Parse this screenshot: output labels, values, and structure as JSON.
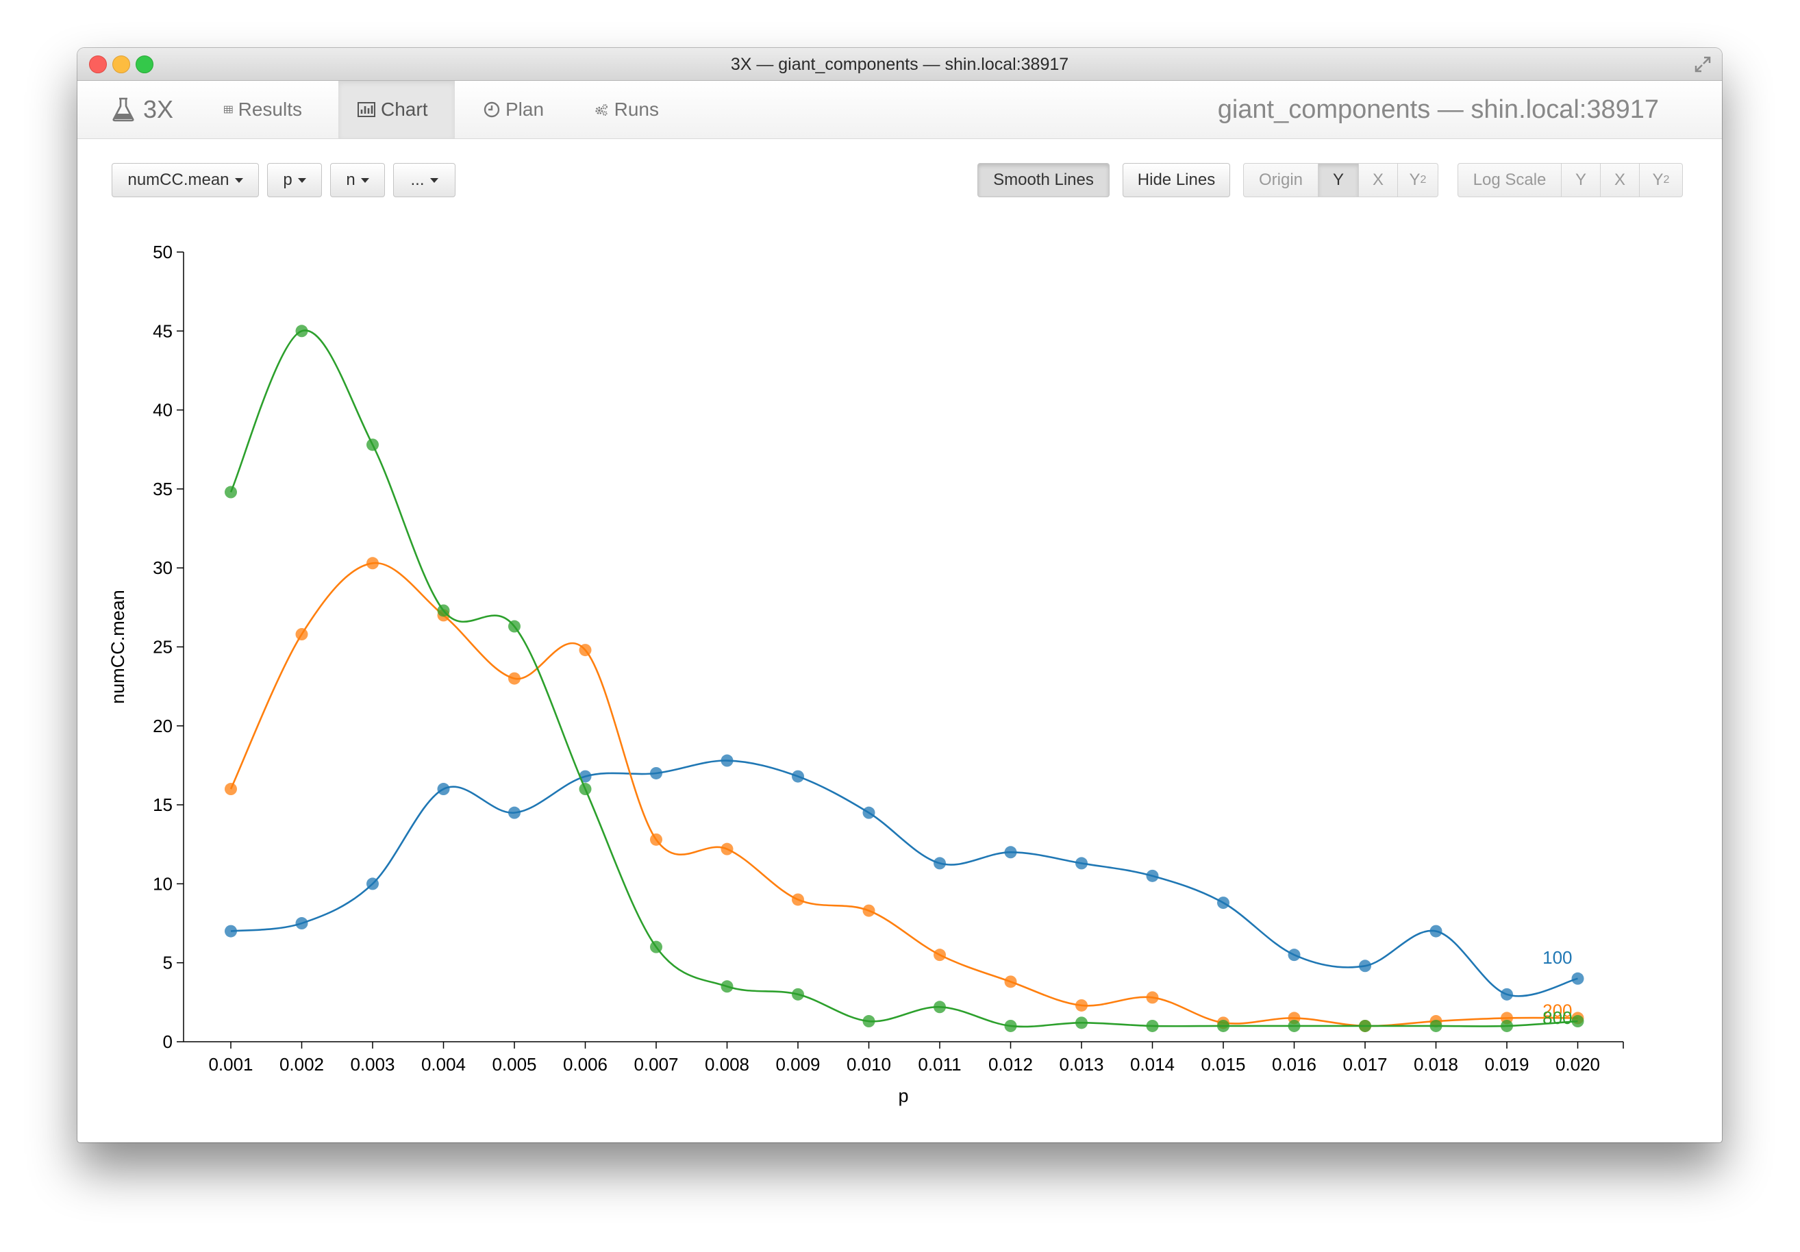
{
  "window": {
    "title": "3X — giant_components — shin.local:38917"
  },
  "navbar": {
    "brand": "3X",
    "tabs": [
      {
        "label": "Results",
        "icon": "table-icon"
      },
      {
        "label": "Chart",
        "icon": "bar-chart-icon",
        "active": true
      },
      {
        "label": "Plan",
        "icon": "clock-icon"
      },
      {
        "label": "Runs",
        "icon": "gears-icon"
      }
    ],
    "right_title": "giant_components — shin.local:38917"
  },
  "toolbar": {
    "y_selector": "numCC.mean",
    "x_selector": "p",
    "series_selector": "n",
    "more_selector": "...",
    "smooth_lines": "Smooth Lines",
    "hide_lines": "Hide Lines",
    "origin": {
      "label": "Origin",
      "y": "Y",
      "x": "X",
      "y2": "Y",
      "y2_sub": "2"
    },
    "log_scale": {
      "label": "Log Scale",
      "y": "Y",
      "x": "X",
      "y2": "Y",
      "y2_sub": "2"
    }
  },
  "chart_data": {
    "type": "scatter",
    "xlabel": "p",
    "ylabel": "numCC.mean",
    "ylim": [
      0,
      50
    ],
    "y_ticks": [
      0,
      5,
      10,
      15,
      20,
      25,
      30,
      35,
      40,
      45,
      50
    ],
    "categories": [
      "0.001",
      "0.002",
      "0.003",
      "0.004",
      "0.005",
      "0.006",
      "0.007",
      "0.008",
      "0.009",
      "0.010",
      "0.011",
      "0.012",
      "0.013",
      "0.014",
      "0.015",
      "0.016",
      "0.017",
      "0.018",
      "0.019",
      "0.020"
    ],
    "smooth_lines": true,
    "series": [
      {
        "name": "100",
        "color": "#1f77b4",
        "values": [
          7.0,
          7.5,
          10.0,
          16.0,
          14.5,
          16.8,
          17.0,
          17.8,
          16.8,
          14.5,
          11.3,
          12.0,
          11.3,
          10.5,
          8.8,
          5.5,
          4.8,
          7.0,
          3.0,
          4.0
        ]
      },
      {
        "name": "200",
        "color": "#ff7f0e",
        "values": [
          16.0,
          25.8,
          30.3,
          27.0,
          23.0,
          24.8,
          12.8,
          12.2,
          9.0,
          8.3,
          5.5,
          3.8,
          2.3,
          2.8,
          1.2,
          1.5,
          1.0,
          1.3,
          1.5,
          1.5
        ]
      },
      {
        "name": "800",
        "color": "#2ca02c",
        "values": [
          34.8,
          45.0,
          37.8,
          27.3,
          26.3,
          16.0,
          6.0,
          3.5,
          3.0,
          1.3,
          2.2,
          1.0,
          1.2,
          1.0,
          1.0,
          1.0,
          1.0,
          1.0,
          1.0,
          1.3
        ]
      }
    ]
  }
}
